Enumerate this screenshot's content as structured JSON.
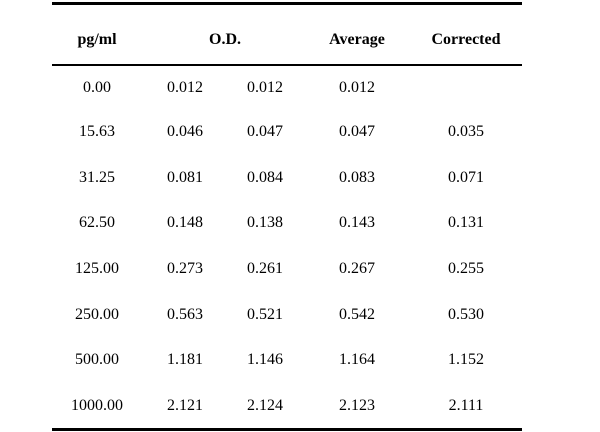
{
  "table": {
    "headers": {
      "conc": "pg/ml",
      "od": "O.D.",
      "average": "Average",
      "corrected": "Corrected"
    },
    "rows": [
      {
        "conc": "0.00",
        "od1": "0.012",
        "od2": "0.012",
        "average": "0.012",
        "corrected": ""
      },
      {
        "conc": "15.63",
        "od1": "0.046",
        "od2": "0.047",
        "average": "0.047",
        "corrected": "0.035"
      },
      {
        "conc": "31.25",
        "od1": "0.081",
        "od2": "0.084",
        "average": "0.083",
        "corrected": "0.071"
      },
      {
        "conc": "62.50",
        "od1": "0.148",
        "od2": "0.138",
        "average": "0.143",
        "corrected": "0.131"
      },
      {
        "conc": "125.00",
        "od1": "0.273",
        "od2": "0.261",
        "average": "0.267",
        "corrected": "0.255"
      },
      {
        "conc": "250.00",
        "od1": "0.563",
        "od2": "0.521",
        "average": "0.542",
        "corrected": "0.530"
      },
      {
        "conc": "500.00",
        "od1": "1.181",
        "od2": "1.146",
        "average": "1.164",
        "corrected": "1.152"
      },
      {
        "conc": "1000.00",
        "od1": "2.121",
        "od2": "2.124",
        "average": "2.123",
        "corrected": "2.111"
      }
    ]
  }
}
